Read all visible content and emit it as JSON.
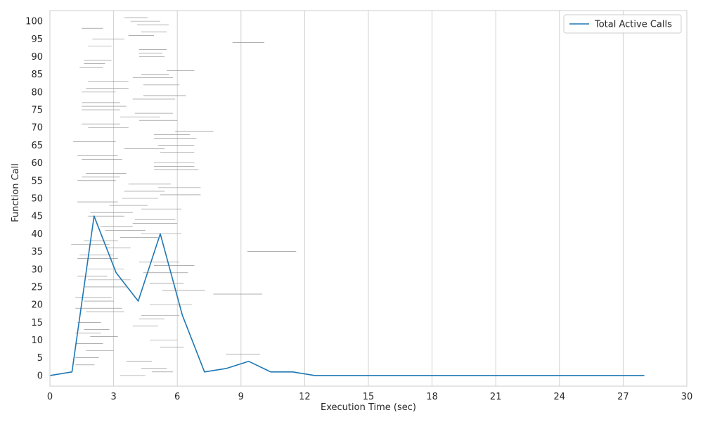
{
  "chart_data": {
    "type": "line",
    "xlabel": "Execution Time (sec)",
    "ylabel": "Function Call",
    "xlim": [
      0,
      30
    ],
    "ylim": [
      -3,
      103
    ],
    "x_ticks": [
      0,
      3,
      6,
      9,
      12,
      15,
      18,
      21,
      24,
      27,
      30
    ],
    "y_ticks": [
      0,
      5,
      10,
      15,
      20,
      25,
      30,
      35,
      40,
      45,
      50,
      55,
      60,
      65,
      70,
      75,
      80,
      85,
      90,
      95,
      100
    ],
    "grid": "x",
    "legend_position": "top-right",
    "series": [
      {
        "name": "Total Active Calls",
        "color": "#1f77b4",
        "x": [
          0,
          1.04,
          2.08,
          3.12,
          4.16,
          5.2,
          6.24,
          7.28,
          8.32,
          9.36,
          10.4,
          11.44,
          12.48,
          13.52,
          14.56,
          15.6,
          16.64,
          17.68,
          18.72,
          19.76,
          20.8,
          21.84,
          22.88,
          23.92,
          24.96,
          26.0,
          27.04,
          28.0
        ],
        "y": [
          0,
          1,
          45,
          29,
          21,
          40,
          17,
          1,
          2,
          4,
          1,
          1,
          0,
          0,
          0,
          0,
          0,
          0,
          0,
          0,
          0,
          0,
          0,
          0,
          0,
          0,
          0,
          0
        ]
      }
    ],
    "call_segments": {
      "color": "#808080",
      "items": [
        [
          3.3,
          4.5,
          0
        ],
        [
          4.8,
          5.8,
          1
        ],
        [
          4.3,
          5.5,
          2
        ],
        [
          1.2,
          2.1,
          3
        ],
        [
          3.6,
          4.8,
          4
        ],
        [
          1.2,
          2.3,
          5
        ],
        [
          8.3,
          9.9,
          6
        ],
        [
          1.7,
          3.0,
          7
        ],
        [
          5.2,
          6.3,
          8
        ],
        [
          1.2,
          2.5,
          9
        ],
        [
          4.7,
          6.0,
          10
        ],
        [
          1.9,
          3.2,
          11
        ],
        [
          1.2,
          2.4,
          12
        ],
        [
          1.6,
          2.8,
          13
        ],
        [
          3.9,
          5.1,
          14
        ],
        [
          1.3,
          2.4,
          15
        ],
        [
          4.2,
          5.4,
          16
        ],
        [
          4.3,
          6.1,
          17
        ],
        [
          1.7,
          3.5,
          18
        ],
        [
          1.2,
          3.4,
          19
        ],
        [
          4.7,
          6.7,
          20
        ],
        [
          1.6,
          3.0,
          21
        ],
        [
          1.2,
          2.9,
          22
        ],
        [
          7.7,
          10.0,
          23
        ],
        [
          5.3,
          7.3,
          24
        ],
        [
          1.6,
          3.6,
          25
        ],
        [
          4.7,
          6.3,
          26
        ],
        [
          1.8,
          3.8,
          27
        ],
        [
          1.3,
          2.7,
          28
        ],
        [
          4.4,
          6.5,
          29
        ],
        [
          1.7,
          3.5,
          30
        ],
        [
          4.9,
          6.8,
          31
        ],
        [
          4.2,
          6.1,
          32
        ],
        [
          1.3,
          3.2,
          33
        ],
        [
          1.4,
          3.0,
          34
        ],
        [
          9.3,
          11.6,
          35
        ],
        [
          2.7,
          3.8,
          36
        ],
        [
          1.0,
          2.8,
          37
        ],
        [
          1.6,
          3.2,
          38
        ],
        [
          3.3,
          5.1,
          39
        ],
        [
          4.3,
          6.2,
          40
        ],
        [
          2.6,
          4.5,
          41
        ],
        [
          2.4,
          3.9,
          42
        ],
        [
          3.9,
          6.0,
          43
        ],
        [
          4.0,
          5.9,
          44
        ],
        [
          1.8,
          3.5,
          45
        ],
        [
          1.9,
          3.9,
          46
        ],
        [
          4.3,
          6.2,
          47
        ],
        [
          2.8,
          4.6,
          48
        ],
        [
          1.3,
          3.2,
          49
        ],
        [
          3.4,
          5.1,
          50
        ],
        [
          5.2,
          7.1,
          51
        ],
        [
          3.5,
          5.4,
          52
        ],
        [
          5.1,
          7.1,
          53
        ],
        [
          3.7,
          5.7,
          54
        ],
        [
          1.3,
          3.1,
          55
        ],
        [
          1.5,
          3.3,
          56
        ],
        [
          1.7,
          3.6,
          57
        ],
        [
          4.9,
          7.0,
          58
        ],
        [
          4.9,
          6.8,
          59
        ],
        [
          4.9,
          6.8,
          60
        ],
        [
          1.5,
          3.4,
          61
        ],
        [
          1.3,
          3.2,
          62
        ],
        [
          5.2,
          6.8,
          63
        ],
        [
          3.5,
          5.4,
          64
        ],
        [
          5.1,
          6.8,
          65
        ],
        [
          1.1,
          3.1,
          66
        ],
        [
          4.9,
          6.9,
          67
        ],
        [
          4.9,
          6.6,
          68
        ],
        [
          5.9,
          7.7,
          69
        ],
        [
          1.8,
          3.7,
          70
        ],
        [
          1.5,
          3.3,
          71
        ],
        [
          4.2,
          6.0,
          72
        ],
        [
          3.3,
          5.2,
          73
        ],
        [
          4.0,
          5.8,
          74
        ],
        [
          1.5,
          3.3,
          75
        ],
        [
          1.5,
          3.6,
          76
        ],
        [
          1.5,
          3.3,
          77
        ],
        [
          3.9,
          5.9,
          78
        ],
        [
          4.4,
          6.4,
          79
        ],
        [
          1.5,
          3.1,
          80
        ],
        [
          1.7,
          3.7,
          81
        ],
        [
          4.4,
          6.1,
          82
        ],
        [
          1.8,
          3.7,
          83
        ],
        [
          3.9,
          5.8,
          84
        ],
        [
          4.3,
          5.6,
          85
        ],
        [
          5.5,
          6.8,
          86
        ],
        [
          1.4,
          2.5,
          87
        ],
        [
          1.6,
          2.6,
          88
        ],
        [
          1.6,
          2.9,
          89
        ],
        [
          4.2,
          5.4,
          90
        ],
        [
          4.2,
          5.3,
          91
        ],
        [
          4.2,
          5.5,
          92
        ],
        [
          1.8,
          2.9,
          93
        ],
        [
          8.6,
          10.1,
          94
        ],
        [
          2.0,
          3.5,
          95
        ],
        [
          3.7,
          4.9,
          96
        ],
        [
          4.3,
          5.5,
          97
        ],
        [
          1.5,
          2.5,
          98
        ],
        [
          4.1,
          5.6,
          99
        ],
        [
          3.8,
          5.2,
          100
        ],
        [
          3.5,
          4.6,
          101
        ]
      ]
    }
  }
}
